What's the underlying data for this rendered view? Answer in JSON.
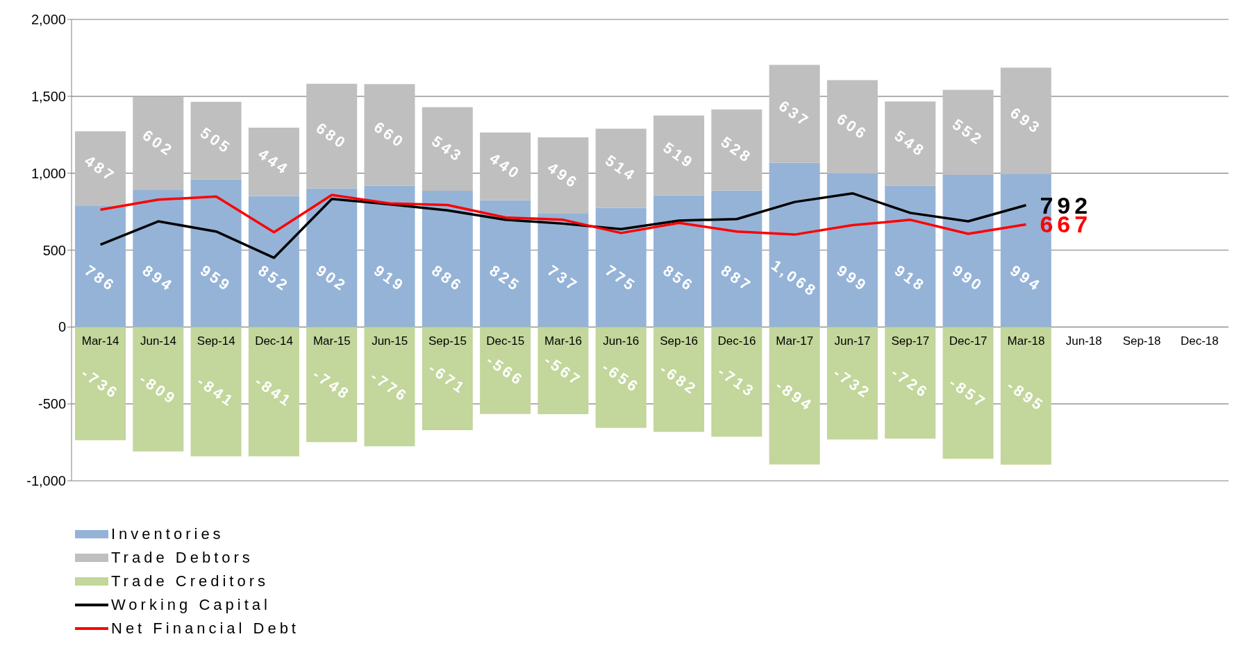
{
  "chart_data": {
    "type": "bar",
    "stacked": true,
    "categories": [
      "Mar-14",
      "Jun-14",
      "Sep-14",
      "Dec-14",
      "Mar-15",
      "Jun-15",
      "Sep-15",
      "Dec-15",
      "Mar-16",
      "Jun-16",
      "Sep-16",
      "Dec-16",
      "Mar-17",
      "Jun-17",
      "Sep-17",
      "Dec-17",
      "Mar-18",
      "Jun-18",
      "Sep-18",
      "Dec-18"
    ],
    "series": [
      {
        "name": "Inventories",
        "color": "#95b3d7",
        "values": [
          786,
          894,
          959,
          852,
          902,
          919,
          886,
          825,
          737,
          775,
          856,
          887,
          1068,
          999,
          918,
          990,
          994,
          null,
          null,
          null
        ],
        "value_labels": [
          "786",
          "894",
          "959",
          "852",
          "902",
          "919",
          "886",
          "825",
          "737",
          "775",
          "856",
          "887",
          "1,068",
          "999",
          "918",
          "990",
          "994",
          null,
          null,
          null
        ]
      },
      {
        "name": "Trade Debtors",
        "color": "#bfbfbf",
        "values": [
          487,
          602,
          505,
          444,
          680,
          660,
          543,
          440,
          496,
          514,
          519,
          528,
          637,
          606,
          548,
          552,
          693,
          null,
          null,
          null
        ],
        "value_labels": [
          "487",
          "602",
          "505",
          "444",
          "680",
          "660",
          "543",
          "440",
          "496",
          "514",
          "519",
          "528",
          "637",
          "606",
          "548",
          "552",
          "693",
          null,
          null,
          null
        ]
      },
      {
        "name": "Trade Creditors",
        "color": "#c3d69b",
        "values": [
          -736,
          -809,
          -841,
          -841,
          -748,
          -776,
          -671,
          -566,
          -567,
          -656,
          -682,
          -713,
          -894,
          -732,
          -726,
          -857,
          -895,
          null,
          null,
          null
        ],
        "value_labels": [
          "-736",
          "-809",
          "-841",
          "-841",
          "-748",
          "-776",
          "-671",
          "-566",
          "-567",
          "-656",
          "-682",
          "-713",
          "-894",
          "-732",
          "-726",
          "-857",
          "-895",
          null,
          null,
          null
        ]
      },
      {
        "name": "Working Capital",
        "type": "line",
        "color": "#000000",
        "values": [
          535,
          687,
          621,
          450,
          833,
          798,
          758,
          697,
          672,
          636,
          692,
          702,
          813,
          869,
          742,
          687,
          792,
          null,
          null,
          null
        ],
        "value_labels": [
          null,
          null,
          null,
          null,
          null,
          null,
          null,
          null,
          null,
          null,
          null,
          null,
          null,
          null,
          null,
          null,
          "792",
          null,
          null,
          null
        ]
      },
      {
        "name": "Net Financial Debt",
        "type": "line",
        "color": "#ff0000",
        "values": [
          763,
          828,
          848,
          616,
          859,
          803,
          793,
          712,
          697,
          611,
          677,
          621,
          601,
          662,
          697,
          606,
          667,
          null,
          null,
          null
        ],
        "value_labels": [
          null,
          null,
          null,
          null,
          null,
          null,
          null,
          null,
          null,
          null,
          null,
          null,
          null,
          null,
          null,
          null,
          "667",
          null,
          null,
          null
        ]
      }
    ],
    "ylim": [
      -1000,
      2000
    ],
    "yticks": [
      {
        "value": -1000,
        "label": "-1,000"
      },
      -500,
      0,
      500,
      {
        "value": 1000,
        "label": "1,000"
      },
      {
        "value": 1500,
        "label": "1,500"
      },
      {
        "value": 2000,
        "label": "2,000"
      }
    ],
    "grid": "y",
    "legend": "bottom left"
  }
}
